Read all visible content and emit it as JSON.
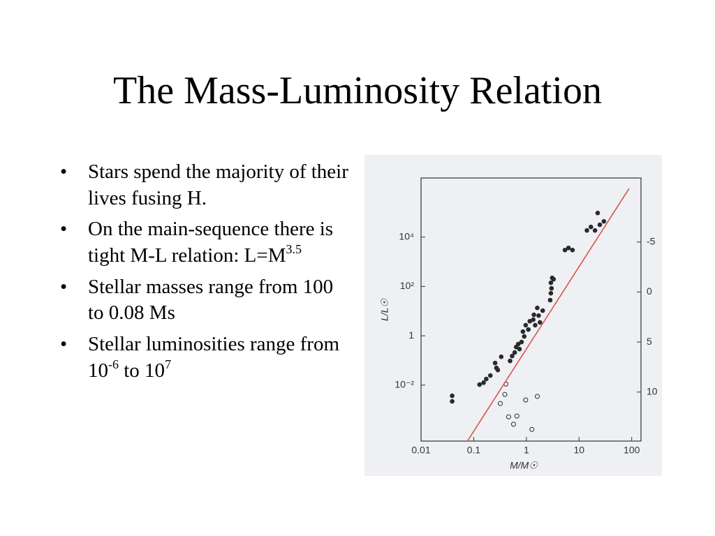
{
  "slide": {
    "title": "The Mass-Luminosity Relation",
    "bullets": [
      [
        {
          "text": "Stars spend the majority of their lives fusing H."
        }
      ],
      [
        {
          "text": "On the main-sequence there is tight M-L relation: L=M"
        },
        {
          "sup": "3.5"
        }
      ],
      [
        {
          "text": "Stellar masses range from 100 to 0.08 Ms"
        }
      ],
      [
        {
          "text": "Stellar luminosities range from 10"
        },
        {
          "sup": "-6"
        },
        {
          "text": " to 10"
        },
        {
          "sup": "7"
        }
      ]
    ]
  },
  "chart_data": {
    "type": "scatter",
    "xlabel": "M/M☉",
    "ylabel": "L/L☉",
    "xscale": "log",
    "yscale": "log",
    "xlim": [
      0.01,
      150
    ],
    "ylim": [
      5.4e-05,
      2500000
    ],
    "y2lim": [
      14.9,
      -11.4
    ],
    "xticks": [
      0.01,
      0.1,
      1,
      10,
      100
    ],
    "yticks": [
      {
        "value": 0.01,
        "label": "10⁻²"
      },
      1,
      {
        "value": 100,
        "label": "10²"
      },
      {
        "value": 10000,
        "label": "10⁴"
      }
    ],
    "y2ticks": [
      -5,
      0,
      5,
      10
    ],
    "series": [
      {
        "marker": "filled",
        "color": "#2a2a2a",
        "x": [
          0.039,
          0.039,
          0.129,
          0.154,
          0.173,
          0.207,
          0.255,
          0.27,
          0.287,
          0.333,
          0.49,
          0.536,
          0.6,
          0.64,
          0.7,
          0.74,
          0.81,
          0.86,
          0.91,
          0.97,
          1.09,
          1.16,
          1.35,
          1.39,
          1.47,
          1.61,
          1.71,
          1.81,
          2.04,
          2.83,
          2.92,
          3.0,
          2.92,
          3.09,
          3.28,
          5.4,
          6.3,
          7.5,
          14.1,
          16.8,
          20.1,
          22.6,
          24.8,
          29.6
        ],
        "values": [
          0.0037,
          0.0022,
          0.0105,
          0.0126,
          0.0177,
          0.0245,
          0.079,
          0.05,
          0.041,
          0.141,
          0.096,
          0.151,
          0.21,
          0.35,
          0.46,
          0.29,
          0.56,
          1.48,
          0.94,
          2.7,
          1.8,
          3.9,
          4.5,
          7.1,
          2.7,
          13.5,
          6.6,
          3.5,
          10.5,
          28,
          53,
          84,
          141,
          222,
          196,
          3000,
          3650,
          3000,
          18700,
          25800,
          18700,
          95000,
          31600,
          43600
        ]
      },
      {
        "marker": "open",
        "color": "#2a2a2a",
        "x": [
          0.41,
          0.39,
          0.32,
          0.46,
          0.66,
          0.57,
          0.97,
          1.27,
          1.61
        ],
        "values": [
          0.011,
          0.0042,
          0.0018,
          0.00052,
          0.00056,
          0.00026,
          0.0025,
          0.00016,
          0.0035
        ]
      },
      {
        "marker": "line",
        "color": "#d9534a",
        "x": [
          0.065,
          89
        ],
        "values": [
          3.2e-05,
          930000
        ]
      }
    ]
  }
}
